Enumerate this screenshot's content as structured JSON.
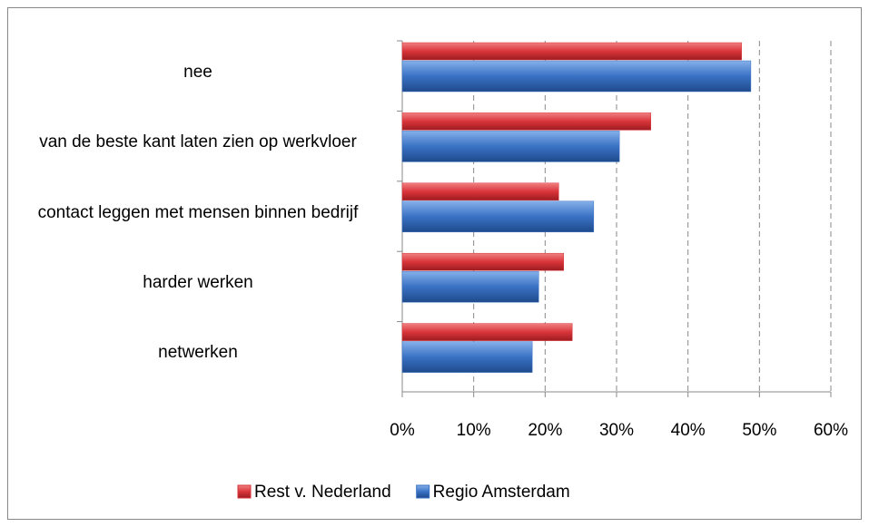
{
  "chart_data": {
    "type": "bar",
    "orientation": "horizontal",
    "categories": [
      "nee",
      "van de beste kant laten zien op werkvloer",
      "contact leggen met mensen binnen bedrijf",
      "harder werken",
      "netwerken"
    ],
    "series": [
      {
        "name": "Rest v. Nederland",
        "color": "#d9343a",
        "values": [
          47.5,
          34.8,
          21.9,
          22.6,
          23.8
        ]
      },
      {
        "name": "Regio Amsterdam",
        "color": "#3a72c4",
        "values": [
          48.8,
          30.4,
          26.8,
          19.1,
          18.2
        ]
      }
    ],
    "xlim": [
      0,
      60
    ],
    "xticks": [
      {
        "value": 0,
        "label": "0%"
      },
      {
        "value": 10,
        "label": "10%"
      },
      {
        "value": 20,
        "label": "20%"
      },
      {
        "value": 30,
        "label": "30%"
      },
      {
        "value": 40,
        "label": "40%"
      },
      {
        "value": 50,
        "label": "50%"
      },
      {
        "value": 60,
        "label": "60%"
      }
    ],
    "grid": true,
    "legend": "bottom"
  }
}
